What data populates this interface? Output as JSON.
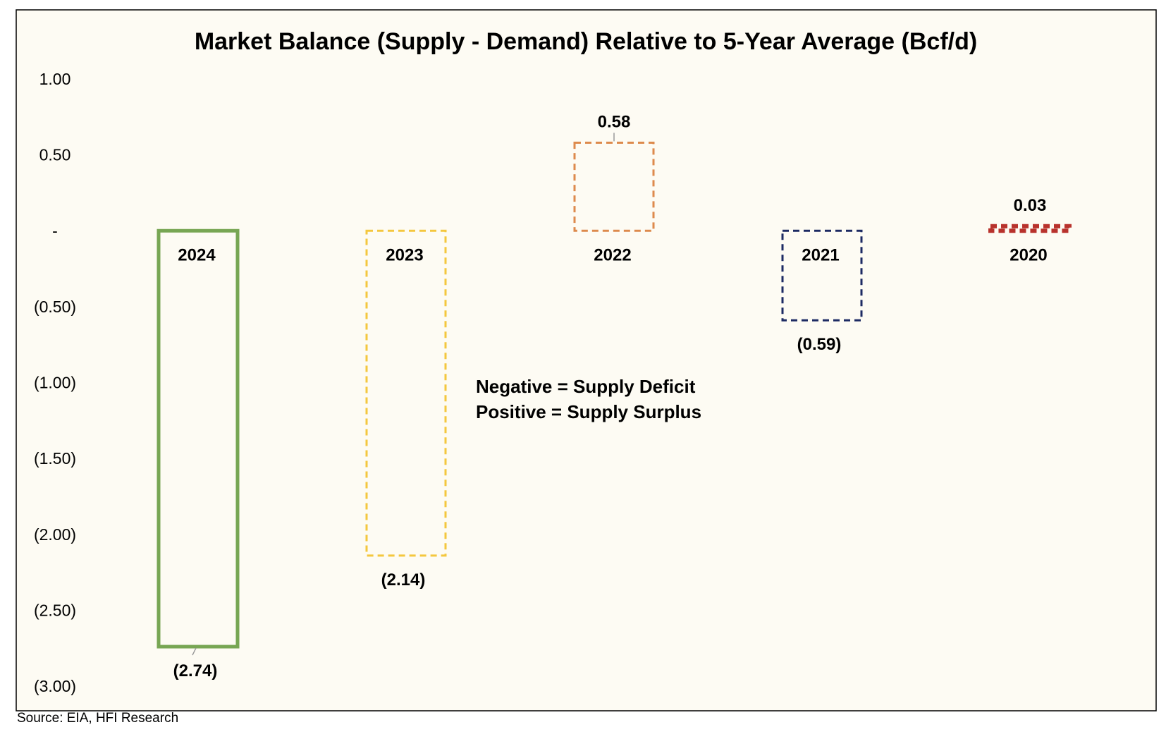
{
  "chart_data": {
    "type": "bar",
    "title": "Market Balance (Supply - Demand) Relative to 5-Year Average (Bcf/d)",
    "categories": [
      "2024",
      "2023",
      "2022",
      "2021",
      "2020"
    ],
    "values": [
      -2.74,
      -2.14,
      0.58,
      -0.59,
      0.03
    ],
    "value_labels": [
      "(2.74)",
      "(2.14)",
      "0.58",
      "(0.59)",
      "0.03"
    ],
    "ylim": [
      -3.0,
      1.0
    ],
    "yticks": [
      1.0,
      0.5,
      0.0,
      -0.5,
      -1.0,
      -1.5,
      -2.0,
      -2.5,
      -3.0
    ],
    "ytick_labels": [
      "1.00",
      "0.50",
      "-",
      "(0.50)",
      "(1.00)",
      "(1.50)",
      "(2.00)",
      "(2.50)",
      "(3.00)"
    ],
    "grid": false,
    "legend": "none",
    "series_styles": [
      {
        "color": "#77a653",
        "dashed": false
      },
      {
        "color": "#f4c73e",
        "dashed": true
      },
      {
        "color": "#dd8a4c",
        "dashed": true
      },
      {
        "color": "#1c2a63",
        "dashed": true
      },
      {
        "color": "#b8322c",
        "dashed": true
      }
    ],
    "annotation": [
      "Negative = Supply Deficit",
      "Positive = Supply Surplus"
    ],
    "background_color": "#fdfbf3"
  },
  "source": "Source: EIA, HFI Research"
}
